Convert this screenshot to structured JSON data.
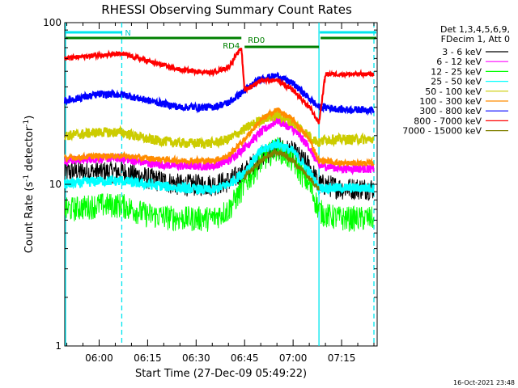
{
  "chart_data": {
    "type": "line",
    "title": "RHESSI Observing Summary Count Rates",
    "xlabel": "Start Time (27-Dec-09 05:49:22)",
    "ylabel_main": "Count Rate (s",
    "ylabel_sup": "-1",
    "ylabel_tail": " detector",
    "ylabel_end": ")",
    "yscale": "log",
    "ylim": [
      1,
      100
    ],
    "xlim": [
      "05:49:22",
      "07:26:00"
    ],
    "x_ticks": [
      "06:00",
      "06:15",
      "06:30",
      "06:45",
      "07:00",
      "07:15"
    ],
    "y_ticks": [
      "1",
      "10",
      "100"
    ],
    "legend_header": [
      "Det 1,3,4,5,6,9,",
      "FDecim 1, Att 0"
    ],
    "legend_position": "right",
    "timestamp": "16-Oct-2021 23:48",
    "annotations": {
      "night_label": "N",
      "rd4_label": "RD4",
      "rd0_label": "RD0",
      "night_bar_1": [
        "05:49:22",
        "06:07:00"
      ],
      "night_bar_2": [
        "07:08:00",
        "07:26:00"
      ],
      "rd4_bar": [
        "05:49:22",
        "06:44:00"
      ],
      "rd0_bar": [
        "06:45:00",
        "07:08:00"
      ],
      "rd0_bar_2": [
        "07:08:00",
        "07:26:00"
      ],
      "vlines_solid": [
        "05:49:22",
        "07:08:00"
      ],
      "vlines_dashed": [
        "06:07:00",
        "07:25:00"
      ]
    },
    "series": [
      {
        "name": "3 - 6 keV",
        "color": "#000000",
        "noise": 0.16,
        "gap": true,
        "x": [
          "05:49:22",
          "06:00",
          "06:07",
          "06:15",
          "06:25",
          "06:35",
          "06:40",
          "06:45",
          "06:50",
          "06:55",
          "07:00",
          "07:05",
          "07:08",
          "07:10",
          "07:15",
          "07:20",
          "07:25"
        ],
        "y": [
          12,
          12,
          12,
          11,
          10,
          10,
          10.5,
          12,
          15,
          17,
          16,
          13,
          10,
          10,
          9.5,
          9.5,
          9.5
        ]
      },
      {
        "name": "6 - 12 keV",
        "color": "#ff00ff",
        "noise": 0.06,
        "gap": true,
        "x": [
          "05:49:22",
          "06:00",
          "06:07",
          "06:15",
          "06:25",
          "06:35",
          "06:40",
          "06:45",
          "06:50",
          "06:55",
          "07:00",
          "07:05",
          "07:08",
          "07:10",
          "07:15",
          "07:20",
          "07:25"
        ],
        "y": [
          14,
          14.5,
          14.5,
          13.5,
          13,
          13,
          14,
          17,
          21,
          25,
          22,
          17,
          13,
          13,
          12.5,
          12.5,
          12.5
        ]
      },
      {
        "name": "12 - 25 keV",
        "color": "#00ff00",
        "noise": 0.18,
        "gap": true,
        "x": [
          "05:49:22",
          "06:00",
          "06:07",
          "06:15",
          "06:25",
          "06:35",
          "06:40",
          "06:45",
          "06:50",
          "06:55",
          "07:00",
          "07:05",
          "07:08",
          "07:10",
          "07:15",
          "07:20",
          "07:25"
        ],
        "y": [
          7,
          7.5,
          7.5,
          6.5,
          6.2,
          6.2,
          7,
          10,
          14,
          17,
          14,
          10,
          7,
          6.5,
          6.2,
          6.2,
          6.2
        ]
      },
      {
        "name": "25 - 50 keV",
        "color": "#00ffff",
        "noise": 0.07,
        "gap": true,
        "x": [
          "05:49:22",
          "06:00",
          "06:07",
          "06:15",
          "06:25",
          "06:35",
          "06:40",
          "06:45",
          "06:50",
          "06:55",
          "07:00",
          "07:05",
          "07:08",
          "07:10",
          "07:15",
          "07:20",
          "07:25"
        ],
        "y": [
          10,
          10.5,
          10.5,
          10,
          9.5,
          9.2,
          10,
          12,
          16,
          18,
          16,
          12,
          9.5,
          9.5,
          9.5,
          9.5,
          9.5
        ]
      },
      {
        "name": "50 - 100 keV",
        "color": "#cccc00",
        "noise": 0.07,
        "gap": true,
        "x": [
          "05:49:22",
          "06:00",
          "06:07",
          "06:15",
          "06:25",
          "06:35",
          "06:40",
          "06:45",
          "06:50",
          "06:55",
          "07:00",
          "07:05",
          "07:08",
          "07:10",
          "07:15",
          "07:20",
          "07:25"
        ],
        "y": [
          20,
          21,
          21,
          19,
          18,
          18,
          19,
          22,
          25,
          27,
          24,
          20,
          18,
          19,
          19,
          19,
          19
        ]
      },
      {
        "name": "100 - 300 keV",
        "color": "#ff8c00",
        "noise": 0.04,
        "gap": true,
        "x": [
          "05:49:22",
          "06:00",
          "06:07",
          "06:15",
          "06:25",
          "06:35",
          "06:40",
          "06:45",
          "06:50",
          "06:55",
          "07:00",
          "07:05",
          "07:08",
          "07:10",
          "07:15",
          "07:20",
          "07:25"
        ],
        "y": [
          14.5,
          15,
          15,
          14.5,
          14,
          14,
          15,
          19,
          25,
          29,
          25,
          19,
          14,
          14,
          13.5,
          13.5,
          13.5
        ]
      },
      {
        "name": "300 - 800 keV",
        "color": "#0000ff",
        "noise": 0.05,
        "gap": true,
        "x": [
          "05:49:22",
          "06:00",
          "06:07",
          "06:15",
          "06:25",
          "06:35",
          "06:40",
          "06:45",
          "06:50",
          "06:55",
          "07:00",
          "07:05",
          "07:08",
          "07:10",
          "07:15",
          "07:20",
          "07:25"
        ],
        "y": [
          33,
          36,
          36,
          33,
          30,
          30,
          32,
          38,
          45,
          47,
          42,
          34,
          30,
          30,
          29,
          29,
          29
        ]
      },
      {
        "name": "800 - 7000 keV",
        "color": "#ff0000",
        "noise": 0.03,
        "gap": true,
        "x": [
          "05:49:22",
          "06:00",
          "06:07",
          "06:15",
          "06:25",
          "06:35",
          "06:40",
          "06:44",
          "06:45",
          "06:50",
          "06:55",
          "07:00",
          "07:05",
          "07:08",
          "07:10",
          "07:15",
          "07:20",
          "07:25"
        ],
        "y": [
          60,
          63,
          64,
          58,
          51,
          49,
          53,
          70,
          38,
          44,
          44,
          38,
          30,
          24,
          48,
          48,
          48,
          48
        ]
      },
      {
        "name": "7000 - 15000 keV",
        "color": "#808000",
        "noise": 0.04,
        "gap": true,
        "x": [
          "06:45",
          "06:50",
          "06:55",
          "07:00",
          "07:05",
          "07:08"
        ],
        "y": [
          11,
          14,
          16,
          14,
          11,
          9.5
        ]
      }
    ]
  }
}
